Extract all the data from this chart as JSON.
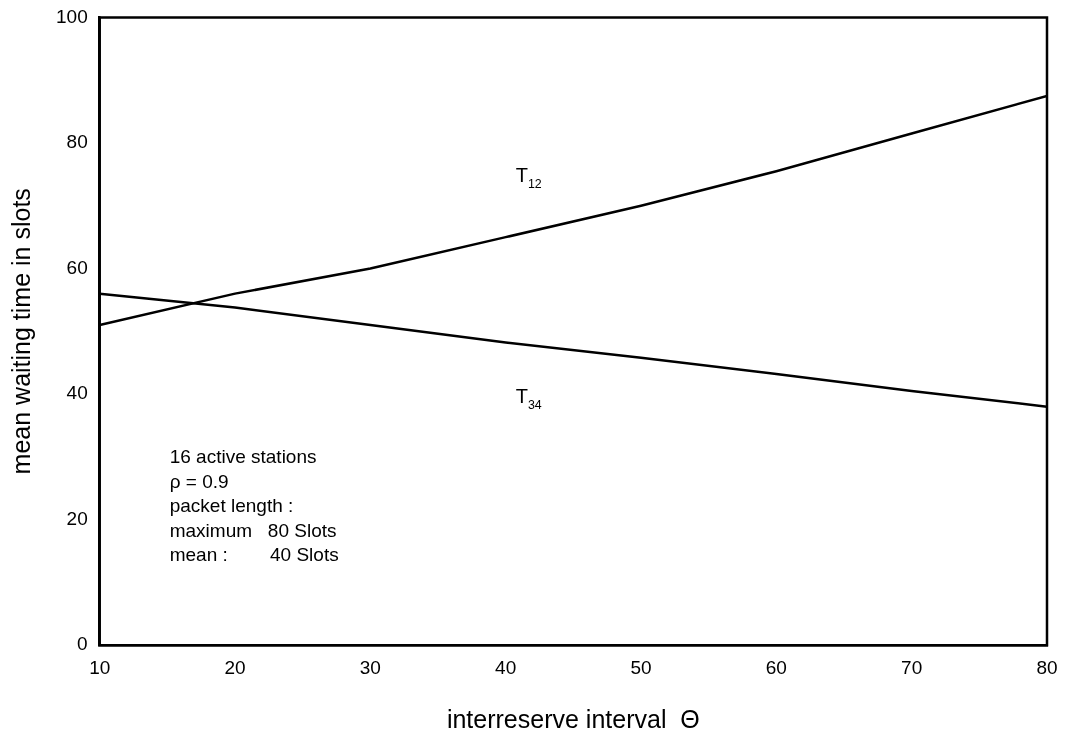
{
  "chart_data": {
    "type": "line",
    "xlabel": "interreserve interval  Θ",
    "ylabel": "mean waiting time in slots",
    "x": [
      10,
      20,
      30,
      40,
      50,
      60,
      70,
      80
    ],
    "series": [
      {
        "name": "T$_{12}$",
        "color": "#000000",
        "values": [
          51,
          56,
          60,
          65,
          70,
          75.5,
          81.5,
          87.5
        ]
      },
      {
        "name": "T$_{34}$",
        "color": "#000000",
        "values": [
          56,
          53.8,
          51,
          48.2,
          45.8,
          43.2,
          40.5,
          38
        ]
      }
    ],
    "xlim": [
      10,
      80
    ],
    "xticks": [
      10,
      20,
      30,
      40,
      50,
      60,
      70,
      80
    ],
    "ylim": [
      0,
      100
    ],
    "yticks": [
      0,
      20,
      40,
      60,
      80,
      100
    ],
    "grid": false,
    "legend": false,
    "marker": "none",
    "line_style": "solid",
    "annotations": [
      "16 active stations",
      "ρ = 0.9",
      "packet length :",
      "maximum   80 Slots",
      "mean :        40 Slots"
    ]
  }
}
